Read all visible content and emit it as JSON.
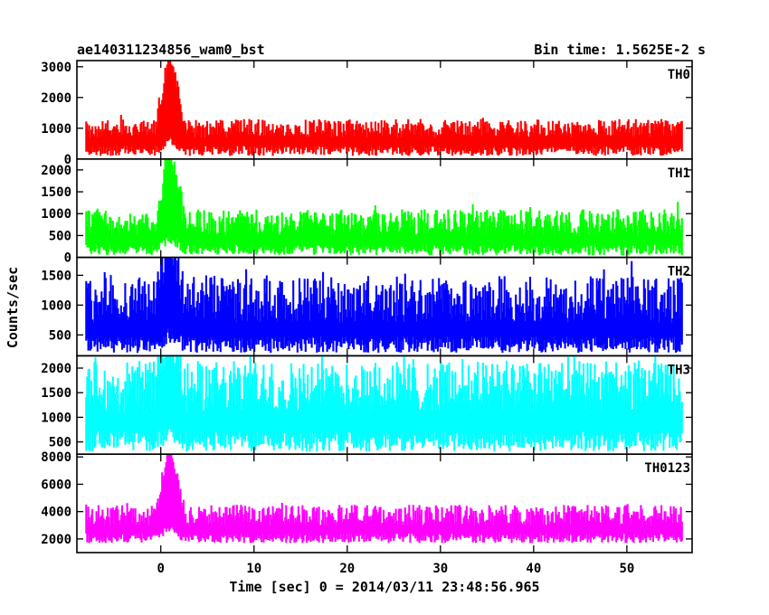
{
  "header": {
    "title": "ae140311234856_wam0_bst",
    "bin_time": "Bin time: 1.5625E-2 s"
  },
  "chart_data": {
    "type": "line",
    "title": "ae140311234856_wam0_bst",
    "xlabel": "Time [sec] 0 = 2014/03/11 23:48:56.965",
    "ylabel": "Counts/sec",
    "xlim": [
      -9,
      57
    ],
    "x_ticks": [
      0,
      10,
      20,
      30,
      40,
      50
    ],
    "x_tick_labels": [
      "0",
      "10",
      "20",
      "30",
      "40",
      "50"
    ],
    "data_range": [
      -8,
      56
    ],
    "grid": false,
    "series": [
      {
        "name": "TH0",
        "color": "#ff0000",
        "ylim": [
          0,
          3200
        ],
        "y_ticks": [
          0,
          1000,
          2000,
          3000
        ],
        "y_tick_labels": [
          "0",
          "1000",
          "2000",
          "3000"
        ],
        "baseline": 700,
        "noise_low": 100,
        "noise_high": 1300,
        "burst_time": 1.0,
        "burst_peak": 3200
      },
      {
        "name": "TH1",
        "color": "#00ff00",
        "ylim": [
          0,
          2250
        ],
        "y_ticks": [
          0,
          500,
          1000,
          1500,
          2000
        ],
        "y_tick_labels": [
          "0",
          "500",
          "1000",
          "1500",
          "2000"
        ],
        "baseline": 500,
        "noise_low": 50,
        "noise_high": 1100,
        "burst_time": 1.0,
        "burst_peak": 2250
      },
      {
        "name": "TH2",
        "color": "#0000ff",
        "ylim": [
          150,
          1800
        ],
        "y_ticks": [
          500,
          1000,
          1500
        ],
        "y_tick_labels": [
          "500",
          "1000",
          "1500"
        ],
        "baseline": 700,
        "noise_low": 200,
        "noise_high": 1500,
        "burst_time": 1.0,
        "burst_peak": 1800
      },
      {
        "name": "TH3",
        "color": "#00ffff",
        "ylim": [
          250,
          2250
        ],
        "y_ticks": [
          500,
          1000,
          1500,
          2000
        ],
        "y_tick_labels": [
          "500",
          "1000",
          "1500",
          "2000"
        ],
        "baseline": 1100,
        "noise_low": 300,
        "noise_high": 2150,
        "burst_time": 1.0,
        "burst_peak": 2250
      },
      {
        "name": "TH0123",
        "color": "#ff00ff",
        "ylim": [
          1000,
          8200
        ],
        "y_ticks": [
          2000,
          4000,
          6000,
          8000
        ],
        "y_tick_labels": [
          "2000",
          "4000",
          "6000",
          "8000"
        ],
        "baseline": 3000,
        "noise_low": 1700,
        "noise_high": 4500,
        "burst_time": 1.0,
        "burst_peak": 8200
      }
    ]
  }
}
